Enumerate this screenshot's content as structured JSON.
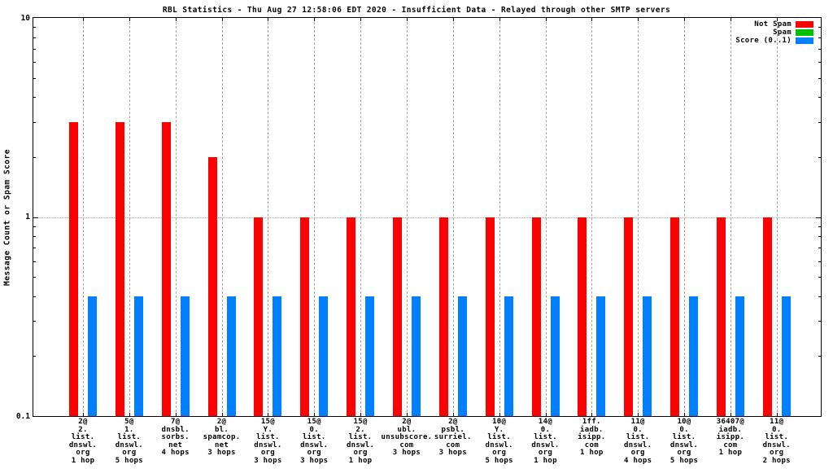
{
  "page": {
    "background": "#ffffff"
  },
  "chart_data": {
    "type": "bar",
    "title": "RBL Statistics - Thu Aug 27 12:58:06 EDT 2020 - Insufficient Data - Relayed through other SMTP servers",
    "ylabel": "Message Count or Spam Score",
    "xlabel": "",
    "yscale": "log",
    "ylim": [
      0.1,
      10
    ],
    "yticks": [
      {
        "value": 10,
        "label": "10"
      },
      {
        "value": 1,
        "label": "1"
      },
      {
        "value": 0.1,
        "label": "0.1"
      }
    ],
    "yminor": [
      0.2,
      0.3,
      0.4,
      0.5,
      0.6,
      0.7,
      0.8,
      0.9,
      2,
      3,
      4,
      5,
      6,
      7,
      8,
      9
    ],
    "grid": {
      "vertical_dashed_at_each_category": true,
      "horizontal_dotted_at": [
        1
      ],
      "color": "#a6a6a6"
    },
    "legend": {
      "position": "top-right",
      "entries": [
        {
          "name": "Not Spam",
          "color": "#ff0000"
        },
        {
          "name": "Spam",
          "color": "#00c000"
        },
        {
          "name": "Score (0..1)",
          "color": "#0080ff"
        }
      ]
    },
    "categories": [
      [
        "2@",
        "2.",
        "list.",
        "dnswl.",
        "org",
        "1 hop"
      ],
      [
        "5@",
        "1.",
        "list.",
        "dnswl.",
        "org",
        "5 hops"
      ],
      [
        "7@",
        "dnsbl.",
        "sorbs.",
        "net",
        "4 hops"
      ],
      [
        "2@",
        "bl.",
        "spamcop.",
        "net",
        "3 hops"
      ],
      [
        "15@",
        "Y.",
        "list.",
        "dnswl.",
        "org",
        "3 hops"
      ],
      [
        "15@",
        "0.",
        "list.",
        "dnswl.",
        "org",
        "3 hops"
      ],
      [
        "15@",
        "2.",
        "list.",
        "dnswl.",
        "org",
        "1 hop"
      ],
      [
        "2@",
        "ubl.",
        "unsubscore.",
        "com",
        "3 hops"
      ],
      [
        "2@",
        "psbl.",
        "surriel.",
        "com",
        "3 hops"
      ],
      [
        "10@",
        "Y.",
        "list.",
        "dnswl.",
        "org",
        "5 hops"
      ],
      [
        "14@",
        "0.",
        "list.",
        "dnswl.",
        "org",
        "1 hop"
      ],
      [
        "1ff.",
        "iadb.",
        "isipp.",
        "com",
        "1 hop"
      ],
      [
        "11@",
        "0.",
        "list.",
        "dnswl.",
        "org",
        "4 hops"
      ],
      [
        "10@",
        "0.",
        "list.",
        "dnswl.",
        "org",
        "5 hops"
      ],
      [
        "36407@",
        "iadb.",
        "isipp.",
        "com",
        "1 hop"
      ],
      [
        "11@",
        "0.",
        "list.",
        "dnswl.",
        "org",
        "2 hops"
      ]
    ],
    "series": [
      {
        "name": "Not Spam",
        "color": "#ff0000",
        "values": [
          3,
          3,
          3,
          2,
          1,
          1,
          1,
          1,
          1,
          1,
          1,
          1,
          1,
          1,
          1,
          1
        ]
      },
      {
        "name": "Spam",
        "color": "#00c000",
        "values": [
          0,
          0,
          0,
          0,
          0,
          0,
          0,
          0,
          0,
          0,
          0,
          0,
          0,
          0,
          0,
          0
        ]
      },
      {
        "name": "Score (0..1)",
        "color": "#0080ff",
        "values": [
          0.4,
          0.4,
          0.4,
          0.4,
          0.4,
          0.4,
          0.4,
          0.4,
          0.4,
          0.4,
          0.4,
          0.4,
          0.4,
          0.4,
          0.4,
          0.4
        ]
      }
    ]
  }
}
